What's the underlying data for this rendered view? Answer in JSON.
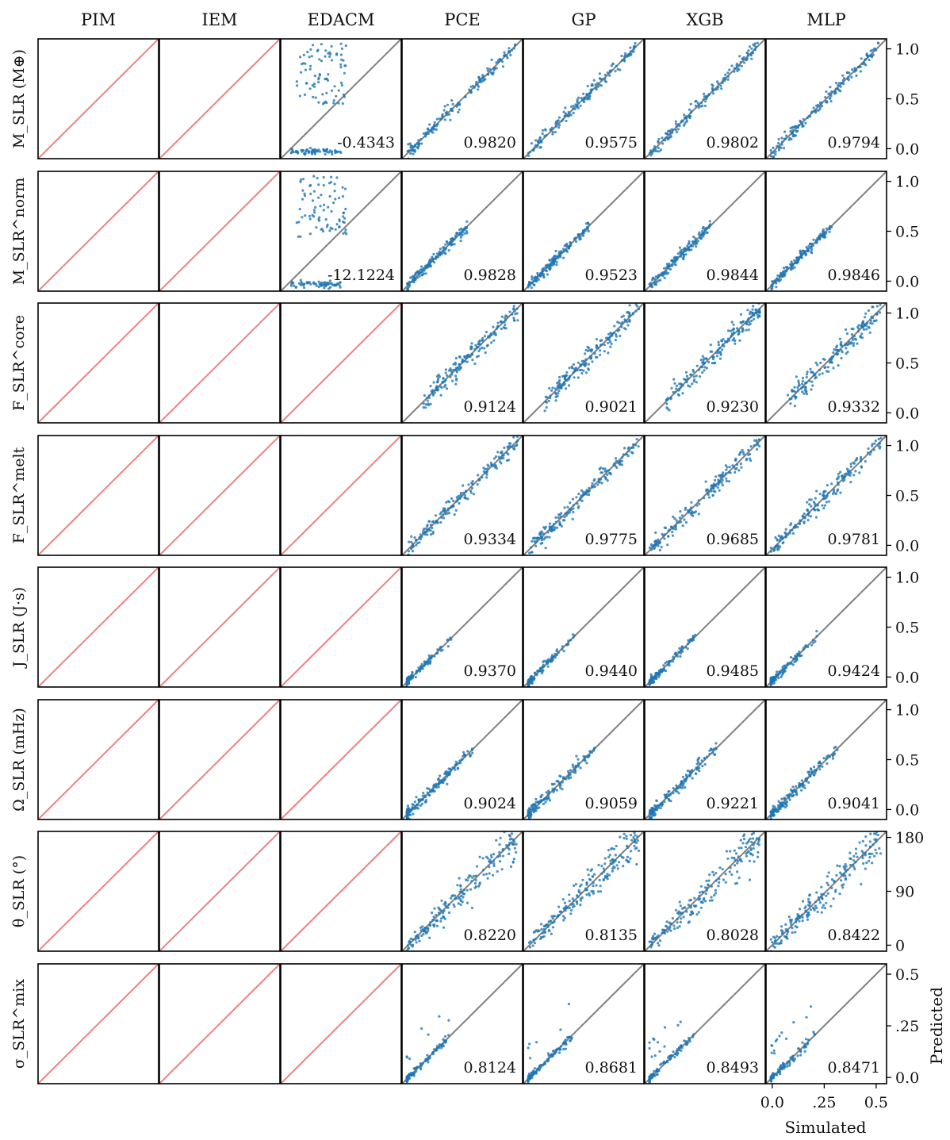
{
  "chart_data": {
    "type": "scatter",
    "title": "",
    "xlabel": "Simulated",
    "ylabel": "Predicted",
    "methods": [
      "PIM",
      "IEM",
      "EDACM",
      "PCE",
      "GP",
      "XGB",
      "MLP"
    ],
    "row_labels": [
      "M_SLR (M⊕)",
      "M_SLR^norm",
      "F_SLR^core",
      "F_SLR^melt",
      "J_SLR (J·s)",
      "Ω_SLR (mHz)",
      "θ_SLR (°)",
      "σ_SLR^mix"
    ],
    "rows": [
      {
        "label": "M_SLR (M⊕)",
        "y_ticks": [
          "0.0",
          "0.5",
          "1.0"
        ],
        "y_tick_values": [
          0,
          0.5,
          1.0
        ],
        "range": [
          -0.1,
          1.1
        ],
        "scores": [
          null,
          null,
          "-0.4343",
          "0.9820",
          "0.9575",
          "0.9802",
          "0.9794"
        ]
      },
      {
        "label": "M_SLR^norm",
        "y_ticks": [
          "0.0",
          "0.5",
          "1.0"
        ],
        "y_tick_values": [
          0,
          0.5,
          1.0
        ],
        "range": [
          -0.1,
          1.1
        ],
        "scores": [
          null,
          null,
          "-12.1224",
          "0.9828",
          "0.9523",
          "0.9844",
          "0.9846"
        ]
      },
      {
        "label": "F_SLR^core",
        "y_ticks": [
          "0.0",
          "0.5",
          "1.0"
        ],
        "y_tick_values": [
          0,
          0.5,
          1.0
        ],
        "range": [
          -0.1,
          1.1
        ],
        "scores": [
          null,
          null,
          null,
          "0.9124",
          "0.9021",
          "0.9230",
          "0.9332"
        ]
      },
      {
        "label": "F_SLR^melt",
        "y_ticks": [
          "0.0",
          "0.5",
          "1.0"
        ],
        "y_tick_values": [
          0,
          0.5,
          1.0
        ],
        "range": [
          -0.1,
          1.1
        ],
        "scores": [
          null,
          null,
          null,
          "0.9334",
          "0.9775",
          "0.9685",
          "0.9781"
        ]
      },
      {
        "label": "J_SLR (J·s)",
        "y_ticks": [
          "0.0",
          "0.5",
          "1.0"
        ],
        "y_tick_values": [
          0,
          0.5,
          1.0
        ],
        "range": [
          -0.1,
          1.1
        ],
        "scores": [
          null,
          null,
          null,
          "0.9370",
          "0.9440",
          "0.9485",
          "0.9424"
        ]
      },
      {
        "label": "Ω_SLR (mHz)",
        "y_ticks": [
          "0.0",
          "0.5",
          "1.0"
        ],
        "y_tick_values": [
          0,
          0.5,
          1.0
        ],
        "range": [
          -0.1,
          1.1
        ],
        "scores": [
          null,
          null,
          null,
          "0.9024",
          "0.9059",
          "0.9221",
          "0.9041"
        ]
      },
      {
        "label": "θ_SLR (°)",
        "y_ticks": [
          "0",
          "90",
          "180"
        ],
        "y_tick_values": [
          0,
          90,
          180
        ],
        "range": [
          -10,
          190
        ],
        "scores": [
          null,
          null,
          null,
          "0.8220",
          "0.8135",
          "0.8028",
          "0.8422"
        ]
      },
      {
        "label": "σ_SLR^mix",
        "y_ticks": [
          "0.0",
          ".25",
          "0.5"
        ],
        "y_tick_values": [
          0,
          0.25,
          0.5
        ],
        "range": [
          -0.03,
          0.55
        ],
        "scores": [
          null,
          null,
          null,
          "0.8124",
          "0.8681",
          "0.8493",
          "0.8471"
        ]
      }
    ],
    "x_ticks": [
      "0.0",
      ".25",
      "0.5"
    ],
    "x_tick_values": [
      0,
      0.25,
      0.5
    ],
    "x_range": [
      -0.03,
      0.55
    ],
    "colors": {
      "points": "#1f77b4",
      "identity_line": "#808080",
      "missing_line": "#f08080",
      "axes": "#000000"
    },
    "grid": false,
    "legend": "none"
  }
}
